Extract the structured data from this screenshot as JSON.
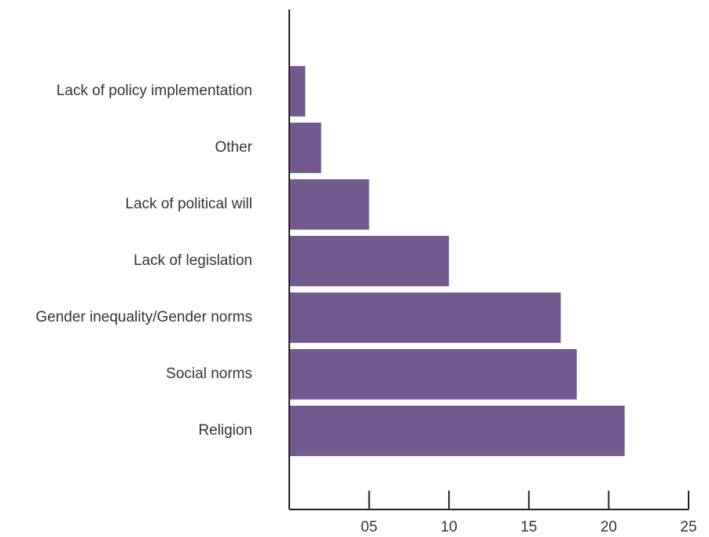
{
  "chart_data": {
    "type": "bar",
    "orientation": "horizontal",
    "categories": [
      "Lack of policy implementation",
      "Other",
      "Lack of political will",
      "Lack of legislation",
      "Gender inequality/Gender norms",
      "Social norms",
      "Religion"
    ],
    "values": [
      1,
      2,
      5,
      10,
      17,
      18,
      21
    ],
    "title": "",
    "xlabel": "",
    "ylabel": "",
    "xlim": [
      0,
      25
    ],
    "xticks": [
      5,
      10,
      15,
      20,
      25
    ],
    "xtick_labels": [
      "05",
      "10",
      "15",
      "20",
      "25"
    ],
    "grid": false,
    "legend": "none",
    "colors": {
      "bar": "#725a8e",
      "axis": "#222222",
      "text": "#333333"
    }
  }
}
